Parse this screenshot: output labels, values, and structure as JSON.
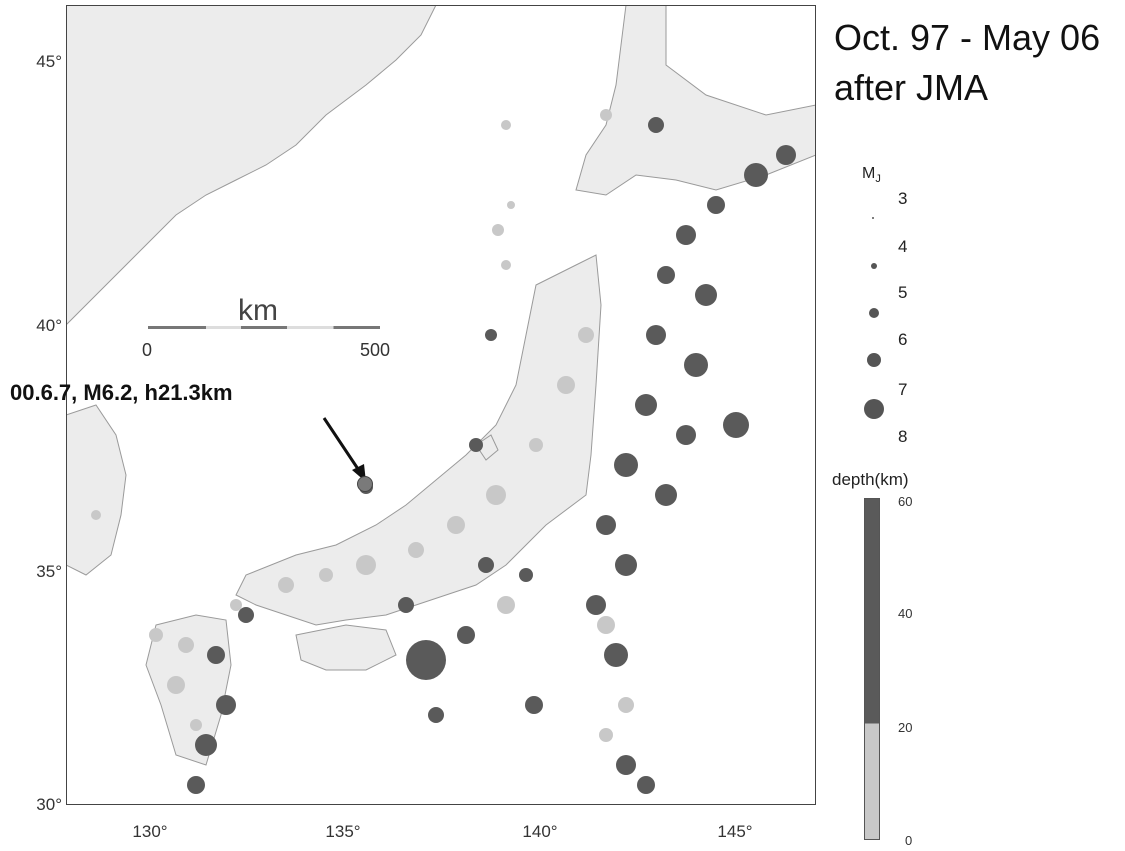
{
  "header": {
    "title_line1": "Oct. 97 - May 06",
    "title_line2": "after JMA"
  },
  "axes": {
    "lat_labels": [
      "45°",
      "40°",
      "35°",
      "30°"
    ],
    "lon_labels": [
      "130°",
      "135°",
      "140°",
      "145°"
    ]
  },
  "scale_bar": {
    "unit": "km",
    "start_label": "0",
    "end_label": "500"
  },
  "annotation": {
    "text": "00.6.7, M6.2, h21.3km"
  },
  "legend": {
    "mag_title": "M",
    "mag_subscript": "J",
    "magnitudes": [
      "3",
      "4",
      "5",
      "6",
      "7",
      "8"
    ],
    "depth_title": "depth(km)",
    "depth_ticks": [
      "60",
      "40",
      "20",
      "0"
    ],
    "colors": {
      "shallow": "#c8c8c8",
      "deep": "#5a5a5a",
      "land": "#ececec",
      "sea": "#ffffff"
    }
  }
}
